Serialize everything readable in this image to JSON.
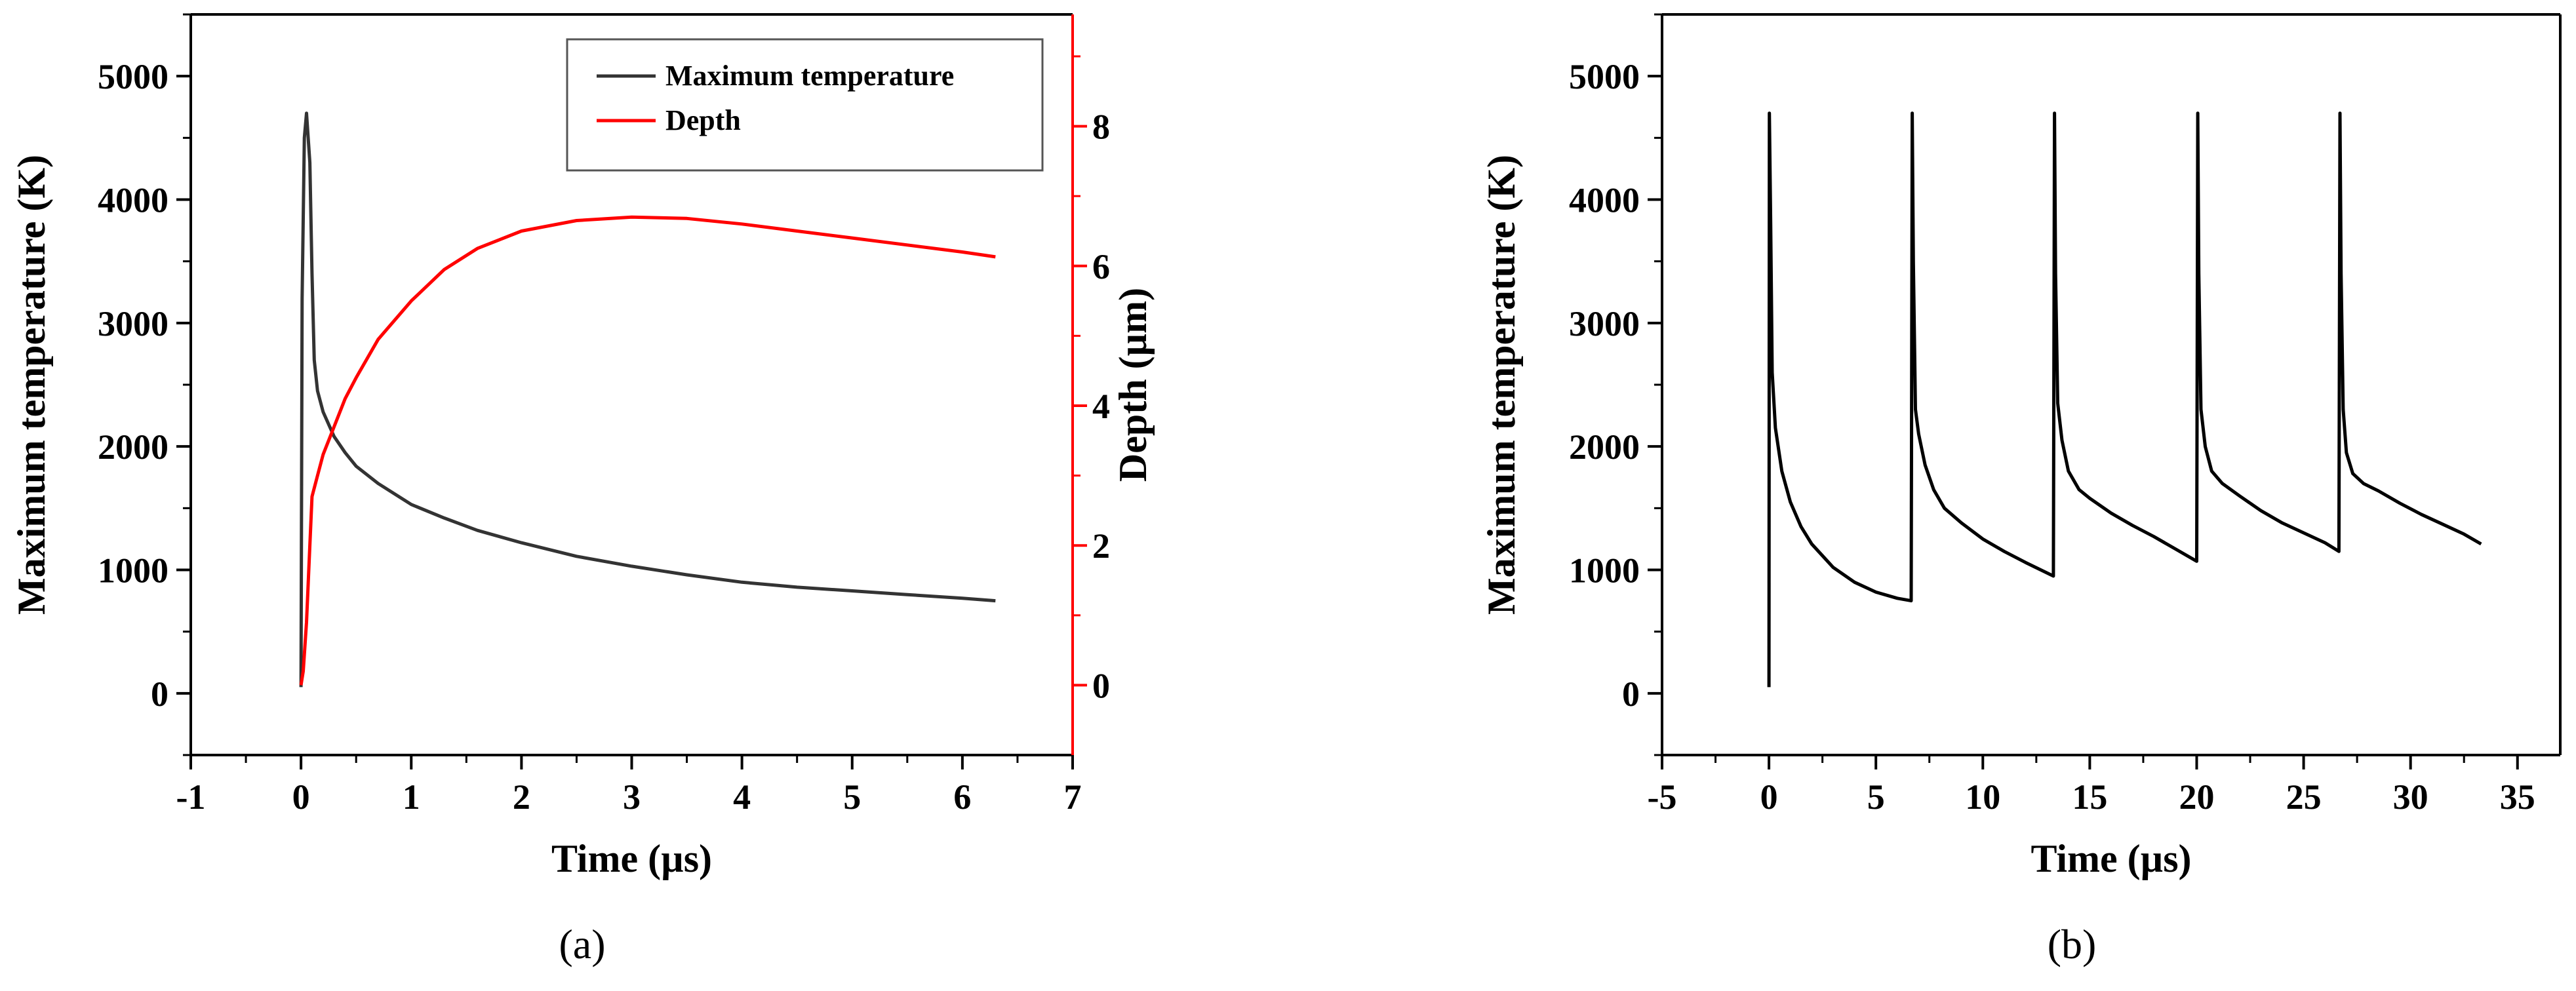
{
  "chart_data": [
    {
      "panel": "a",
      "type": "line",
      "caption": "(a)",
      "xlabel": "Time (µs)",
      "ylabel": "Maximum temperature (K)",
      "y2label": "Depth (µm)",
      "xlim": [
        -1,
        7
      ],
      "ylim": [
        -500,
        5500
      ],
      "y2lim": [
        -1,
        9.6
      ],
      "xticks": [
        -1,
        0,
        1,
        2,
        3,
        4,
        5,
        6,
        7
      ],
      "yticks": [
        0,
        1000,
        2000,
        3000,
        4000,
        5000
      ],
      "y2ticks": [
        0,
        2,
        4,
        6,
        8
      ],
      "grid": false,
      "legend": {
        "position": "top-right",
        "entries": [
          "Maximum temperature",
          "Depth"
        ]
      },
      "series": [
        {
          "name": "Maximum temperature",
          "axis": "left",
          "color": "#333333",
          "x": [
            0,
            0.01,
            0.03,
            0.05,
            0.08,
            0.1,
            0.12,
            0.15,
            0.2,
            0.3,
            0.4,
            0.5,
            0.7,
            1.0,
            1.3,
            1.6,
            2.0,
            2.5,
            3.0,
            3.5,
            4.0,
            4.5,
            5.0,
            5.5,
            6.0,
            6.3
          ],
          "y": [
            50,
            3200,
            4500,
            4700,
            4300,
            3400,
            2700,
            2450,
            2280,
            2080,
            1950,
            1840,
            1700,
            1530,
            1420,
            1320,
            1220,
            1110,
            1030,
            960,
            900,
            860,
            830,
            800,
            770,
            750
          ]
        },
        {
          "name": "Depth",
          "axis": "right",
          "color": "#ff0000",
          "x": [
            0,
            0.02,
            0.05,
            0.08,
            0.1,
            0.15,
            0.2,
            0.3,
            0.4,
            0.5,
            0.7,
            1.0,
            1.3,
            1.6,
            2.0,
            2.5,
            3.0,
            3.5,
            4.0,
            4.5,
            5.0,
            5.5,
            6.0,
            6.3
          ],
          "y": [
            0,
            0.2,
            0.9,
            2.0,
            2.7,
            3.0,
            3.3,
            3.7,
            4.1,
            4.4,
            4.95,
            5.5,
            5.95,
            6.25,
            6.5,
            6.65,
            6.7,
            6.68,
            6.6,
            6.5,
            6.4,
            6.3,
            6.2,
            6.13
          ]
        }
      ]
    },
    {
      "panel": "b",
      "type": "line",
      "caption": "(b)",
      "xlabel": "Time (µs)",
      "ylabel": "Maximum temperature (K)",
      "xlim": [
        -5,
        37
      ],
      "ylim": [
        -500,
        5500
      ],
      "xticks": [
        -5,
        0,
        5,
        10,
        15,
        20,
        25,
        30,
        35
      ],
      "yticks": [
        0,
        1000,
        2000,
        3000,
        4000,
        5000
      ],
      "grid": false,
      "series": [
        {
          "color": "#000000",
          "x": [
            0,
            0.02,
            0.08,
            0.15,
            0.3,
            0.6,
            1.0,
            1.5,
            2.0,
            3.0,
            4.0,
            5.0,
            6.0,
            6.65,
            6.7,
            6.75,
            6.85,
            7.0,
            7.3,
            7.7,
            8.2,
            9.0,
            10.0,
            11.0,
            12.0,
            13.3,
            13.35,
            13.4,
            13.5,
            13.7,
            14.0,
            14.5,
            15.0,
            16.0,
            17.0,
            18.0,
            19.0,
            20.0,
            20.05,
            20.1,
            20.2,
            20.4,
            20.7,
            21.2,
            22.0,
            23.0,
            24.0,
            25.0,
            26.0,
            26.65,
            26.7,
            26.75,
            26.85,
            27.0,
            27.3,
            27.8,
            28.5,
            29.5,
            30.5,
            31.5,
            32.5,
            33.3
          ],
          "y": [
            50,
            4700,
            3800,
            2600,
            2150,
            1800,
            1550,
            1350,
            1210,
            1020,
            900,
            820,
            770,
            750,
            4700,
            3500,
            2300,
            2100,
            1850,
            1650,
            1500,
            1380,
            1250,
            1150,
            1060,
            950,
            4700,
            3400,
            2350,
            2050,
            1800,
            1650,
            1580,
            1460,
            1360,
            1270,
            1170,
            1070,
            4700,
            3400,
            2300,
            2000,
            1800,
            1700,
            1600,
            1480,
            1380,
            1300,
            1220,
            1150,
            4700,
            3400,
            2300,
            1950,
            1780,
            1700,
            1640,
            1540,
            1450,
            1370,
            1290,
            1210
          ]
        }
      ]
    }
  ]
}
